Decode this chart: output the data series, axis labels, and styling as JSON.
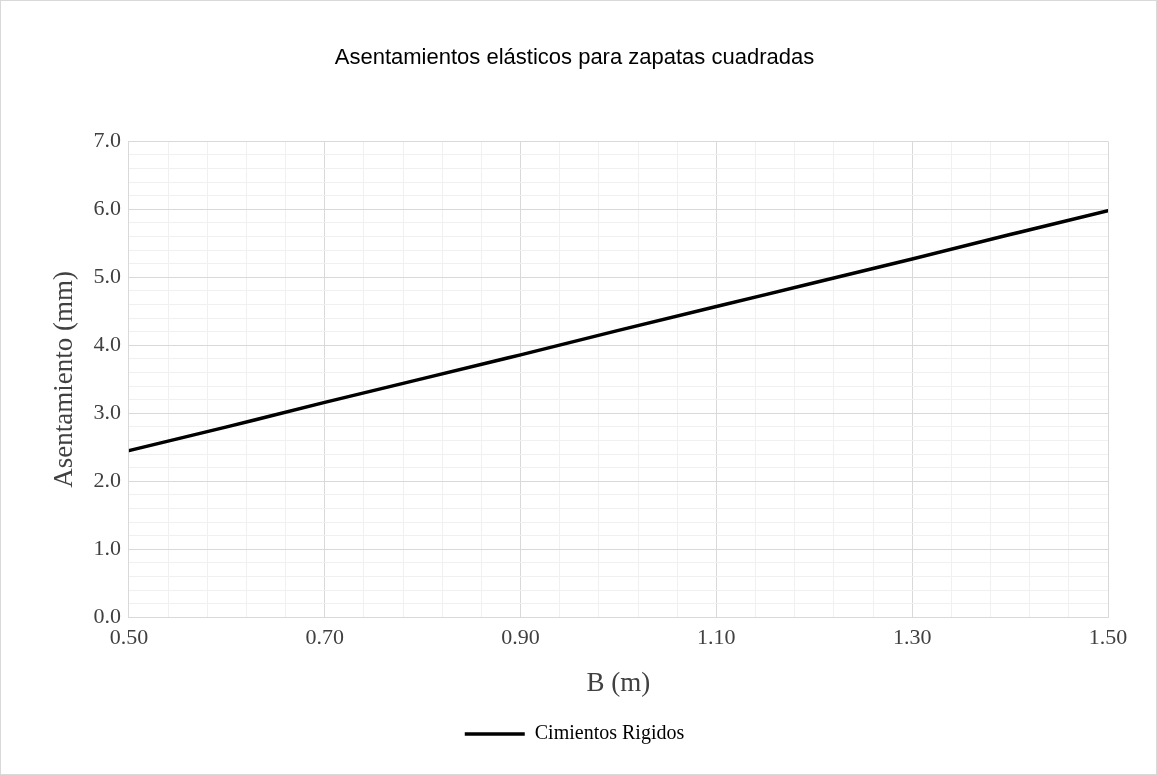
{
  "chart_data": {
    "type": "line",
    "title": "Asentamientos elásticos para zapatas cuadradas",
    "xlabel": "B (m)",
    "ylabel": "Asentamiento (mm)",
    "x": [
      0.5,
      0.6,
      0.7,
      0.8,
      0.9,
      1.0,
      1.1,
      1.2,
      1.3,
      1.4,
      1.5
    ],
    "series": [
      {
        "name": "Cimientos Rigidos",
        "color": "#000000",
        "values": [
          2.45,
          2.8,
          3.16,
          3.51,
          3.86,
          4.22,
          4.57,
          4.92,
          5.27,
          5.63,
          5.98
        ]
      }
    ],
    "xlim": [
      0.5,
      1.5
    ],
    "xticks": [
      {
        "value": 0.5,
        "label": "0.50"
      },
      {
        "value": 0.54,
        "label": null
      },
      {
        "value": 0.58,
        "label": null
      },
      {
        "value": 0.62,
        "label": null
      },
      {
        "value": 0.66,
        "label": null
      },
      {
        "value": 0.7,
        "label": "0.70"
      },
      {
        "value": 0.74,
        "label": null
      },
      {
        "value": 0.78,
        "label": null
      },
      {
        "value": 0.82,
        "label": null
      },
      {
        "value": 0.86,
        "label": null
      },
      {
        "value": 0.9,
        "label": "0.90"
      },
      {
        "value": 0.94,
        "label": null
      },
      {
        "value": 0.98,
        "label": null
      },
      {
        "value": 1.02,
        "label": null
      },
      {
        "value": 1.06,
        "label": null
      },
      {
        "value": 1.1,
        "label": "1.10"
      },
      {
        "value": 1.14,
        "label": null
      },
      {
        "value": 1.18,
        "label": null
      },
      {
        "value": 1.22,
        "label": null
      },
      {
        "value": 1.26,
        "label": null
      },
      {
        "value": 1.3,
        "label": "1.30"
      },
      {
        "value": 1.34,
        "label": null
      },
      {
        "value": 1.38,
        "label": null
      },
      {
        "value": 1.42,
        "label": null
      },
      {
        "value": 1.46,
        "label": null
      },
      {
        "value": 1.5,
        "label": "1.50"
      }
    ],
    "ylim": [
      0,
      7
    ],
    "yticks": [
      {
        "value": 0,
        "label": "0.0"
      },
      {
        "value": 0.2,
        "label": null
      },
      {
        "value": 0.4,
        "label": null
      },
      {
        "value": 0.6,
        "label": null
      },
      {
        "value": 0.8,
        "label": null
      },
      {
        "value": 1,
        "label": "1.0"
      },
      {
        "value": 1.2,
        "label": null
      },
      {
        "value": 1.4,
        "label": null
      },
      {
        "value": 1.6,
        "label": null
      },
      {
        "value": 1.8,
        "label": null
      },
      {
        "value": 2,
        "label": "2.0"
      },
      {
        "value": 2.2,
        "label": null
      },
      {
        "value": 2.4,
        "label": null
      },
      {
        "value": 2.6,
        "label": null
      },
      {
        "value": 2.8,
        "label": null
      },
      {
        "value": 3,
        "label": "3.0"
      },
      {
        "value": 3.2,
        "label": null
      },
      {
        "value": 3.4,
        "label": null
      },
      {
        "value": 3.6,
        "label": null
      },
      {
        "value": 3.8,
        "label": null
      },
      {
        "value": 4,
        "label": "4.0"
      },
      {
        "value": 4.2,
        "label": null
      },
      {
        "value": 4.4,
        "label": null
      },
      {
        "value": 4.6,
        "label": null
      },
      {
        "value": 4.8,
        "label": null
      },
      {
        "value": 5,
        "label": "5.0"
      },
      {
        "value": 5.2,
        "label": null
      },
      {
        "value": 5.4,
        "label": null
      },
      {
        "value": 5.6,
        "label": null
      },
      {
        "value": 5.8,
        "label": null
      },
      {
        "value": 6,
        "label": "6.0"
      },
      {
        "value": 6.2,
        "label": null
      },
      {
        "value": 6.4,
        "label": null
      },
      {
        "value": 6.6,
        "label": null
      },
      {
        "value": 6.8,
        "label": null
      },
      {
        "value": 7,
        "label": "7.0"
      }
    ],
    "grid": true,
    "legend": "bottom",
    "marker": "none",
    "line_style": "solid"
  }
}
